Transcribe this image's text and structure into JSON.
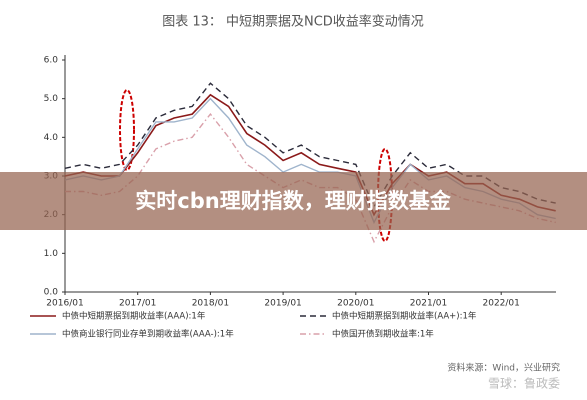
{
  "chart_data": {
    "type": "line",
    "title": "图表 13：  中短期票据及NCD收益率变动情况",
    "x": [
      "2016/01",
      "2016/04",
      "2016/07",
      "2016/10",
      "2017/01",
      "2017/04",
      "2017/07",
      "2017/10",
      "2018/01",
      "2018/04",
      "2018/07",
      "2018/10",
      "2019/01",
      "2019/04",
      "2019/07",
      "2019/10",
      "2020/01",
      "2020/04",
      "2020/07",
      "2020/10",
      "2021/01",
      "2021/04",
      "2021/07",
      "2021/10",
      "2022/01",
      "2022/04",
      "2022/07",
      "2022/10"
    ],
    "xticks": [
      "2016/01",
      "2017/01",
      "2018/01",
      "2019/01",
      "2020/01",
      "2021/01",
      "2022/01"
    ],
    "ylim": [
      0,
      6
    ],
    "yticks": [
      {
        "value": 0,
        "label": "0.0"
      },
      {
        "value": 1,
        "label": "1.0"
      },
      {
        "value": 2,
        "label": "2.0"
      },
      {
        "value": 3,
        "label": "3.0"
      },
      {
        "value": 4,
        "label": "4.0"
      },
      {
        "value": 5,
        "label": "5.0"
      },
      {
        "value": 6,
        "label": "6.0"
      }
    ],
    "series": [
      {
        "name": "中债中短期票据到期收益率(AAA):1年",
        "color": "#8b1a1a",
        "style": "solid",
        "values": [
          3.0,
          3.1,
          3.0,
          3.0,
          3.6,
          4.3,
          4.5,
          4.6,
          5.1,
          4.8,
          4.1,
          3.8,
          3.4,
          3.6,
          3.3,
          3.2,
          3.1,
          2.0,
          2.8,
          3.3,
          3.0,
          3.1,
          2.8,
          2.8,
          2.5,
          2.4,
          2.2,
          2.1
        ]
      },
      {
        "name": "中债中短期票据到期收益率(AA+):1年",
        "color": "#2b2b3a",
        "style": "dashed",
        "values": [
          3.2,
          3.3,
          3.2,
          3.3,
          3.8,
          4.5,
          4.7,
          4.8,
          5.4,
          5.0,
          4.3,
          4.0,
          3.6,
          3.8,
          3.5,
          3.4,
          3.3,
          2.2,
          3.0,
          3.6,
          3.2,
          3.3,
          3.0,
          3.0,
          2.7,
          2.6,
          2.4,
          2.3
        ]
      },
      {
        "name": "中债商业银行同业存单到期收益率(AAA-):1年",
        "color": "#9fb4cc",
        "style": "solid",
        "values": [
          2.9,
          3.0,
          2.9,
          3.0,
          3.7,
          4.4,
          4.4,
          4.5,
          5.0,
          4.5,
          3.8,
          3.5,
          3.1,
          3.3,
          3.1,
          3.1,
          3.0,
          1.8,
          2.7,
          3.3,
          2.9,
          3.0,
          2.7,
          2.6,
          2.4,
          2.3,
          2.0,
          1.9
        ]
      },
      {
        "name": "中债国开债到期收益率:1年",
        "color": "#d9a0aa",
        "style": "dashdot",
        "values": [
          2.6,
          2.6,
          2.5,
          2.6,
          3.0,
          3.7,
          3.9,
          4.0,
          4.6,
          4.0,
          3.3,
          3.0,
          2.7,
          2.9,
          2.7,
          2.7,
          2.4,
          1.3,
          2.2,
          2.9,
          2.6,
          2.6,
          2.4,
          2.3,
          2.2,
          2.1,
          1.9,
          1.8
        ]
      }
    ],
    "source": "资料来源：Wind，兴业研究",
    "watermark": "雪球：鲁政委",
    "banner": "实时cbn理财指数，理财指数基金"
  }
}
